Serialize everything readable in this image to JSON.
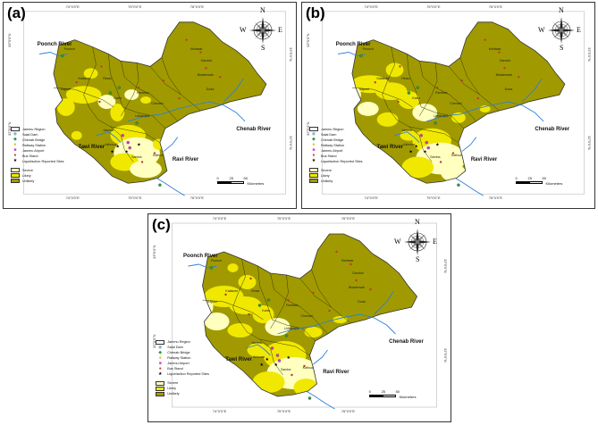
{
  "colors": {
    "severe": "#ffffc0",
    "likely": "#f0e800",
    "unlikely": "#a09a00",
    "river": "#2f7fd6",
    "border": "#333333"
  },
  "panels": [
    {
      "label": "(a)",
      "lon_ticks": [
        "74°0'0\"E",
        "75°0'0\"E",
        "76°0'0\"E"
      ],
      "lat_ticks": [
        "33°0'0\"N",
        "32°0'0\"N"
      ]
    },
    {
      "label": "(b)",
      "lon_ticks": [
        "74°0'0\"E",
        "75°0'0\"E",
        "76°0'0\"E"
      ],
      "lat_ticks": [
        "33°0'0\"N",
        "32°0'0\"N"
      ]
    },
    {
      "label": "(c)",
      "lon_ticks": [
        "74°0'0\"E",
        "75°0'0\"E",
        "76°0'0\"E"
      ],
      "lat_ticks": [
        "33°0'0\"N",
        "32°0'0\"N"
      ]
    }
  ],
  "rivers": {
    "poonch": "Poonch River",
    "chenab": "Chenab River",
    "tawi": "Tawi River",
    "ravi": "Ravi River"
  },
  "places": {
    "poonch": "Poonch",
    "rajouri": "Rajouri",
    "reasi": "Reasi",
    "ramban": "Ramban",
    "kishtwar": "Kishtwar",
    "doda": "Doda",
    "udhampur": "Udhampur",
    "kathua": "Kathua",
    "jammu": "Jammu",
    "samba": "Samba",
    "bhaderwah": "Bhaderwah",
    "kalakote": "Kalakote",
    "akhnoor": "Akhnoor",
    "katra": "Katra",
    "chenani": "Chenani",
    "gandoh": "Gandoh"
  },
  "legend": {
    "items": [
      "Jammu Region",
      "Salal Dam",
      "Chenab Bridge",
      "Railway Station",
      "Jammu Airport",
      "Bus Stand",
      "Liquefaction Reported Sites"
    ],
    "classes": [
      "Severe",
      "Likely",
      "Unlikely"
    ]
  },
  "scale": {
    "ticks": [
      "0",
      "25",
      "50"
    ],
    "unit": "Kilometers"
  },
  "compass": {
    "n": "N",
    "s": "S",
    "e": "E",
    "w": "W"
  }
}
